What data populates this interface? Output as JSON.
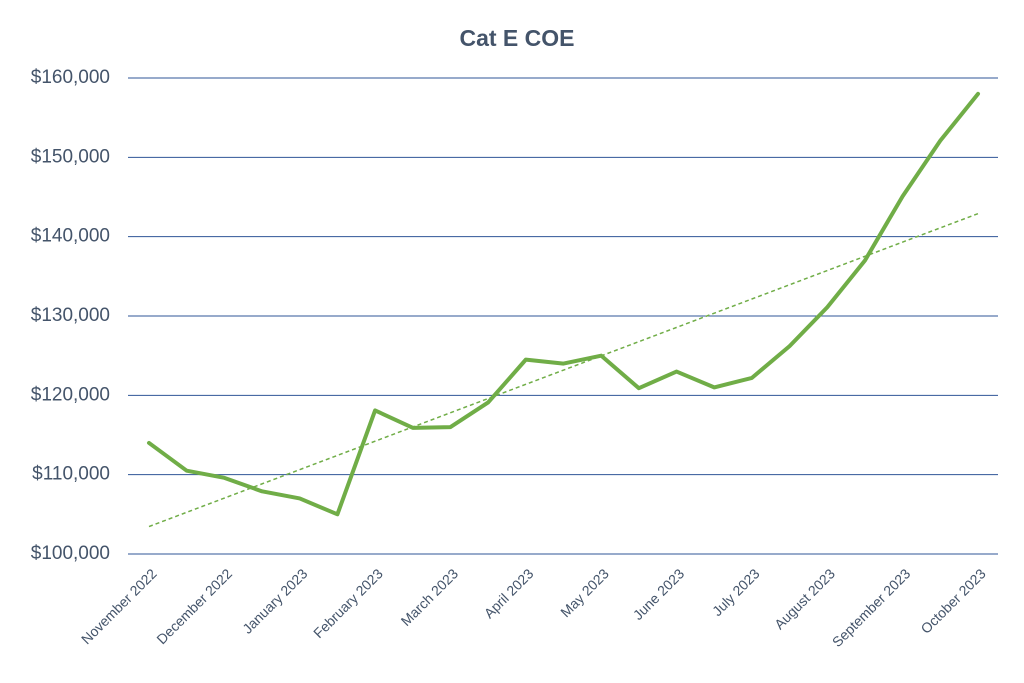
{
  "chart_data": {
    "type": "line",
    "title": "Cat E COE",
    "categories": [
      "November 2022",
      null,
      "December 2022",
      null,
      "January 2023",
      null,
      "February 2023",
      null,
      "March 2023",
      null,
      "April 2023",
      null,
      "May 2023",
      null,
      "June 2023",
      null,
      "July 2023",
      null,
      "August 2023",
      null,
      "September 2023",
      null,
      "October 2023"
    ],
    "series": [
      {
        "color": "#70ad47",
        "values": [
          114000,
          110500,
          109600,
          107900,
          107000,
          105000,
          118100,
          115900,
          116000,
          119100,
          124500,
          124000,
          125000,
          120900,
          123000,
          121000,
          122200,
          126200,
          131100,
          137000,
          145100,
          152100,
          158000
        ]
      }
    ],
    "ylim": [
      100000,
      160000
    ],
    "yticks": [
      {
        "value": 100000,
        "label": "$100,000"
      },
      {
        "value": 110000,
        "label": "$110,000"
      },
      {
        "value": 120000,
        "label": "$120,000"
      },
      {
        "value": 130000,
        "label": "$130,000"
      },
      {
        "value": 140000,
        "label": "$140,000"
      },
      {
        "value": 150000,
        "label": "$150,000"
      },
      {
        "value": 160000,
        "label": "$160,000"
      }
    ],
    "grid": true,
    "trendline": true
  }
}
